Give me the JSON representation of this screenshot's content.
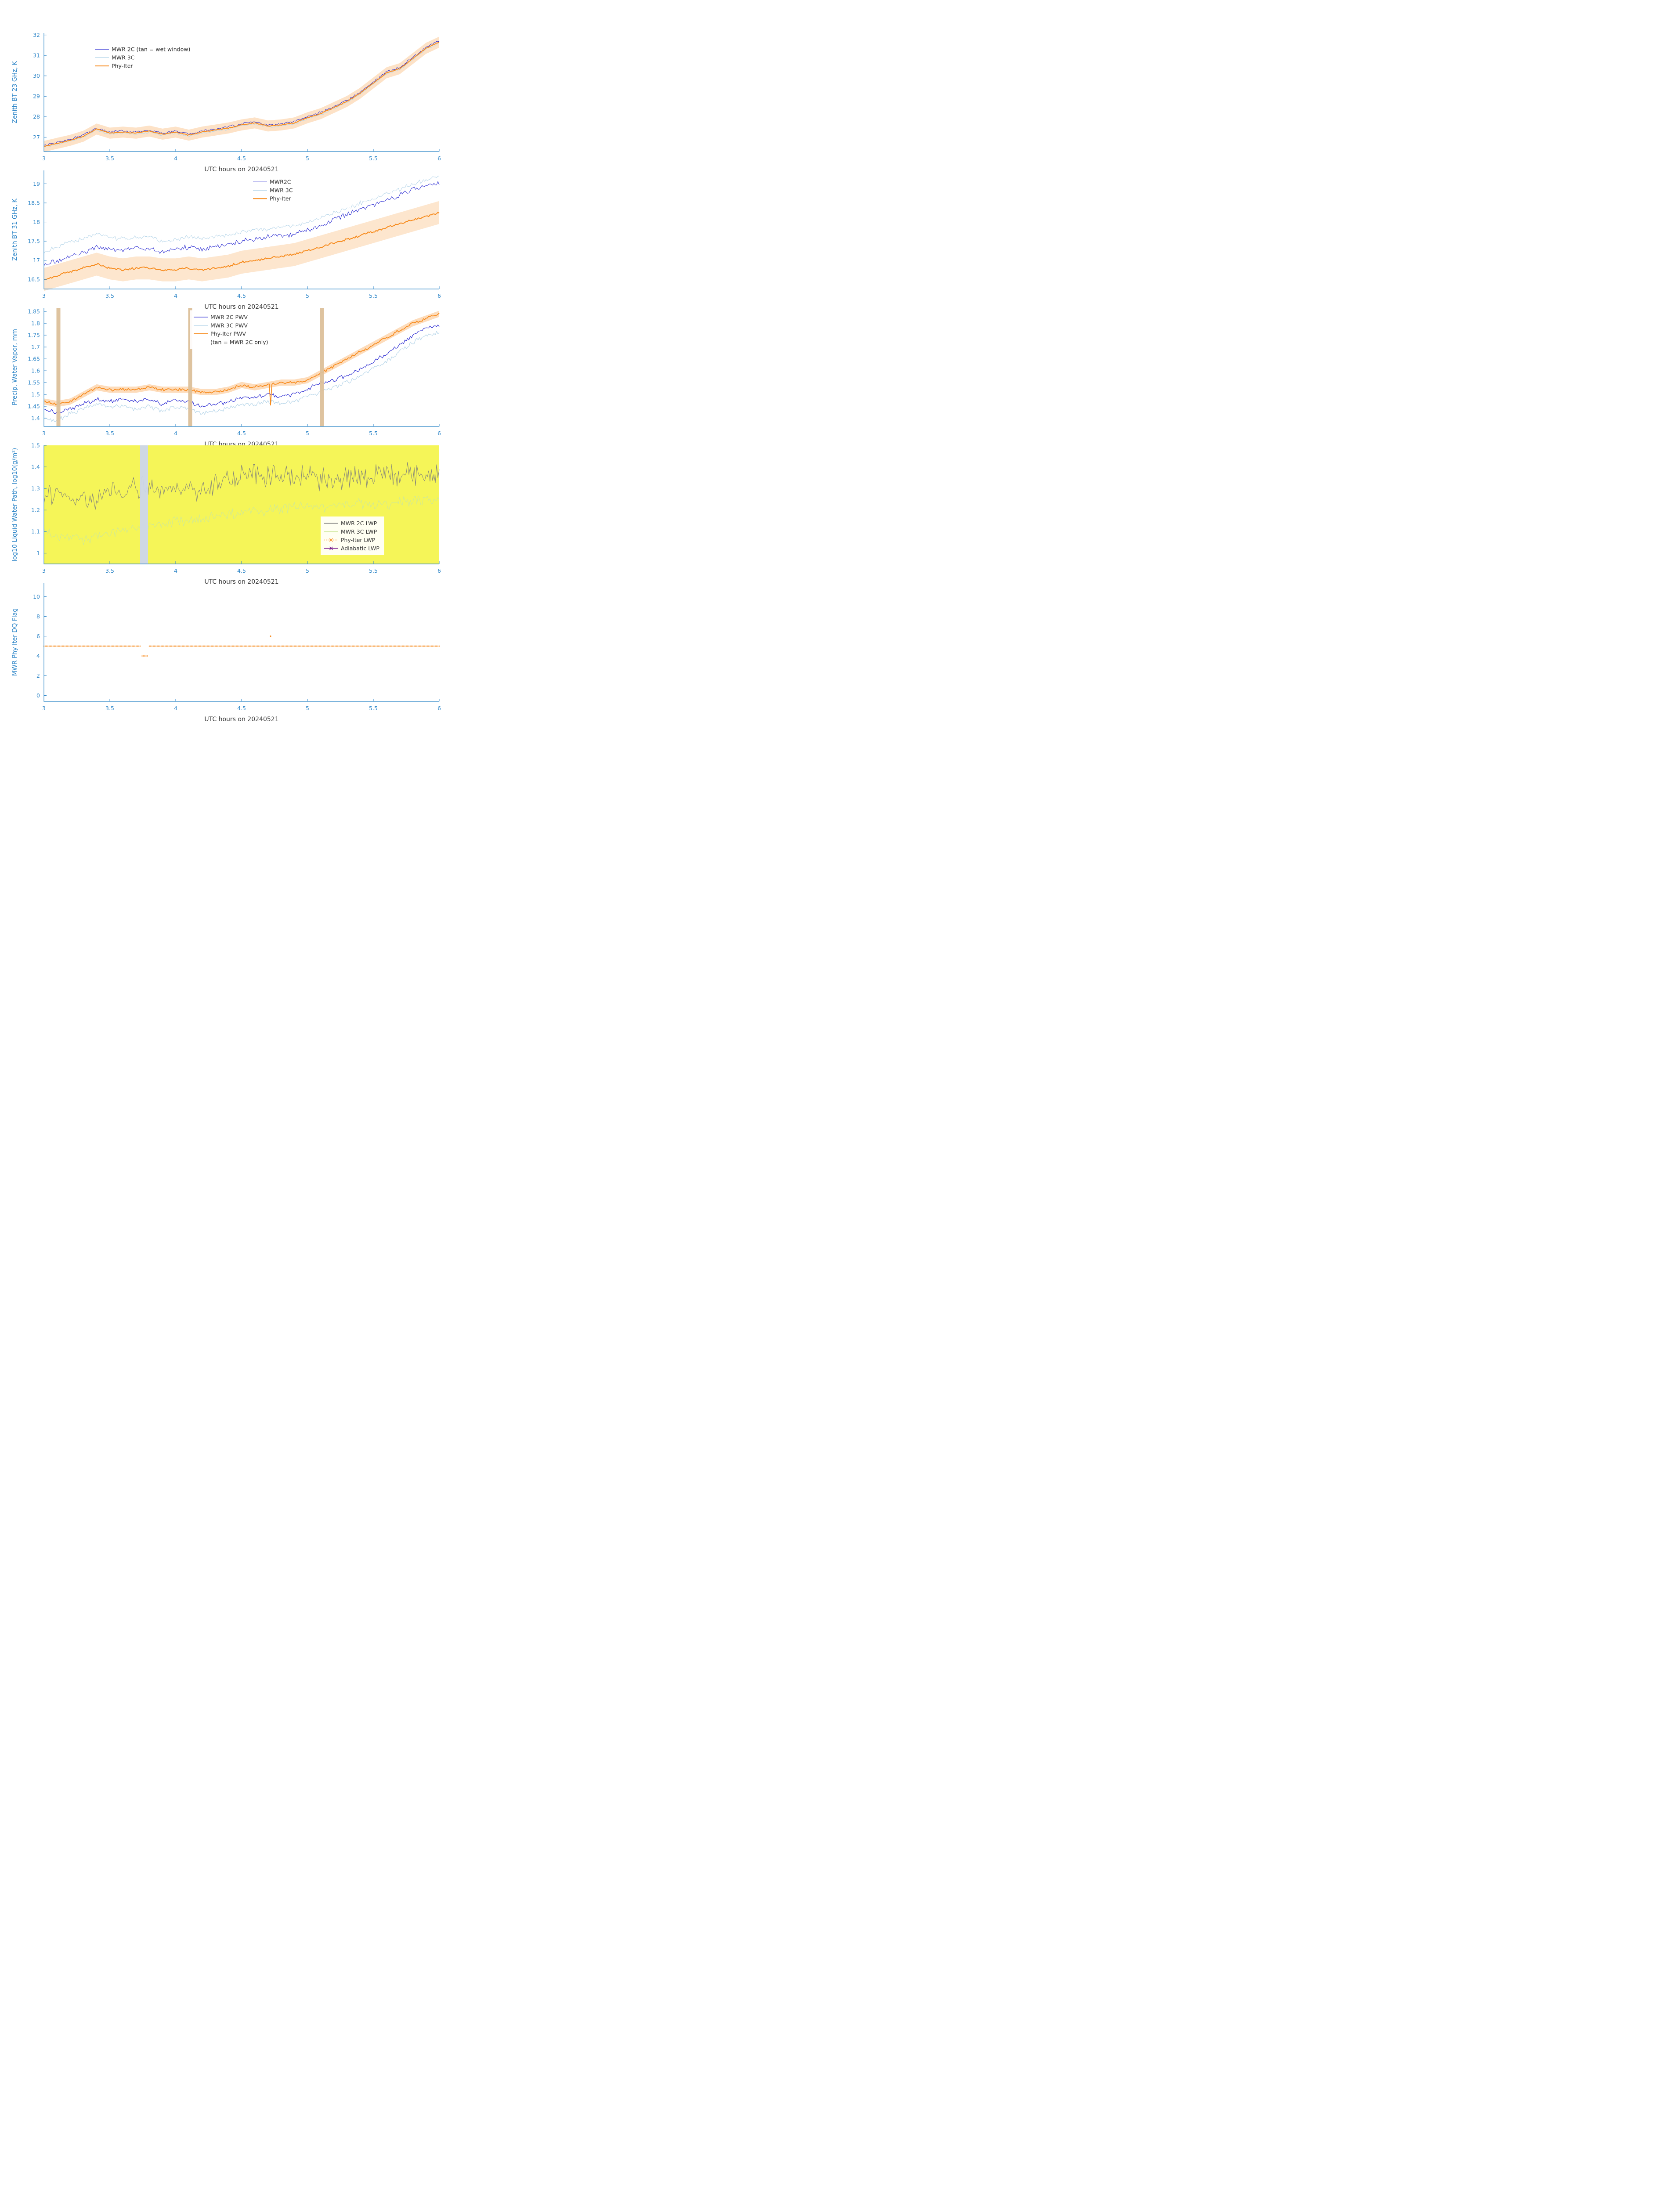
{
  "figure": {
    "axis_color": "#2e86c8",
    "text_color": "#3a3a3a",
    "legend_text_color": "#303030",
    "xlabel": "UTC hours on 20240521"
  },
  "chart_data": [
    {
      "type": "line",
      "name": "zenith-bt-23",
      "ylabel": "Zenith BT 23 GHz, K",
      "xlabel": "UTC hours on 20240521",
      "xlim": [
        3,
        6
      ],
      "xticks": [
        3,
        3.5,
        4,
        4.5,
        5,
        5.5,
        6
      ],
      "ylim": [
        26.3,
        32.1
      ],
      "yticks": [
        27,
        28,
        29,
        30,
        31,
        32
      ],
      "legend": {
        "x": 0.12,
        "y": 0.08
      },
      "x": [
        3,
        3.1,
        3.2,
        3.3,
        3.4,
        3.5,
        3.6,
        3.7,
        3.8,
        3.9,
        4,
        4.1,
        4.2,
        4.3,
        4.4,
        4.5,
        4.6,
        4.7,
        4.8,
        4.9,
        5,
        5.1,
        5.2,
        5.3,
        5.4,
        5.5,
        5.6,
        5.7,
        5.8,
        5.9,
        6
      ],
      "series": [
        {
          "label": "MWR 2C (tan = wet window)",
          "color": "#2f2fd3",
          "width": 1,
          "noise": 0.07,
          "values": [
            26.6,
            26.75,
            26.9,
            27.1,
            27.45,
            27.25,
            27.3,
            27.25,
            27.35,
            27.2,
            27.3,
            27.15,
            27.3,
            27.4,
            27.5,
            27.65,
            27.75,
            27.6,
            27.65,
            27.75,
            28.0,
            28.2,
            28.5,
            28.8,
            29.2,
            29.7,
            30.2,
            30.4,
            30.9,
            31.4,
            31.7
          ]
        },
        {
          "label": "MWR 3C",
          "color": "#b9d7ea",
          "width": 1,
          "noise": 0.06,
          "values": [
            26.5,
            26.65,
            26.8,
            27.0,
            27.35,
            27.15,
            27.2,
            27.15,
            27.25,
            27.1,
            27.2,
            27.05,
            27.2,
            27.3,
            27.4,
            27.55,
            27.65,
            27.5,
            27.55,
            27.65,
            27.9,
            28.1,
            28.4,
            28.7,
            29.1,
            29.6,
            30.1,
            30.3,
            30.8,
            31.3,
            31.6
          ]
        },
        {
          "label": "Phy-Iter",
          "color": "#f78c1f",
          "width": 2,
          "noise": 0.025,
          "band": 0.27,
          "band_color": "rgba(247,140,31,0.25)",
          "values": [
            26.55,
            26.7,
            26.85,
            27.05,
            27.4,
            27.2,
            27.25,
            27.2,
            27.3,
            27.15,
            27.25,
            27.1,
            27.25,
            27.35,
            27.45,
            27.6,
            27.7,
            27.55,
            27.6,
            27.7,
            27.95,
            28.15,
            28.45,
            28.75,
            29.15,
            29.65,
            30.15,
            30.35,
            30.85,
            31.35,
            31.65
          ]
        }
      ]
    },
    {
      "type": "line",
      "name": "zenith-bt-31",
      "ylabel": "Zenith BT 31 GHz, K",
      "xlabel": "UTC hours on 20240521",
      "xlim": [
        3,
        6
      ],
      "xticks": [
        3,
        3.5,
        4,
        4.5,
        5,
        5.5,
        6
      ],
      "ylim": [
        16.25,
        19.35
      ],
      "yticks": [
        16.5,
        17,
        17.5,
        18,
        18.5,
        19
      ],
      "legend": {
        "x": 0.52,
        "y": 0.04
      },
      "x": [
        3,
        3.1,
        3.2,
        3.3,
        3.4,
        3.5,
        3.6,
        3.7,
        3.8,
        3.9,
        4,
        4.1,
        4.2,
        4.3,
        4.4,
        4.5,
        4.6,
        4.7,
        4.8,
        4.9,
        5,
        5.1,
        5.2,
        5.3,
        5.4,
        5.5,
        5.6,
        5.7,
        5.8,
        5.9,
        6
      ],
      "series": [
        {
          "label": "MWR2C",
          "color": "#2f2fd3",
          "width": 1,
          "noise": 0.08,
          "values": [
            16.9,
            17.0,
            17.1,
            17.2,
            17.35,
            17.3,
            17.25,
            17.35,
            17.3,
            17.2,
            17.3,
            17.35,
            17.3,
            17.35,
            17.4,
            17.5,
            17.55,
            17.6,
            17.65,
            17.7,
            17.8,
            17.9,
            18.05,
            18.2,
            18.35,
            18.45,
            18.6,
            18.7,
            18.85,
            18.95,
            19.0
          ]
        },
        {
          "label": "MWR 3C",
          "color": "#b9d7ea",
          "width": 1,
          "noise": 0.07,
          "values": [
            17.2,
            17.35,
            17.5,
            17.55,
            17.7,
            17.6,
            17.55,
            17.6,
            17.6,
            17.5,
            17.55,
            17.6,
            17.55,
            17.6,
            17.65,
            17.75,
            17.8,
            17.8,
            17.85,
            17.9,
            18.0,
            18.1,
            18.25,
            18.35,
            18.5,
            18.6,
            18.75,
            18.85,
            19.0,
            19.1,
            19.2
          ]
        },
        {
          "label": "Phy-Iter",
          "color": "#f78c1f",
          "width": 2,
          "noise": 0.035,
          "band": 0.3,
          "band_color": "rgba(247,140,31,0.22)",
          "values": [
            16.5,
            16.6,
            16.7,
            16.8,
            16.9,
            16.8,
            16.75,
            16.8,
            16.8,
            16.75,
            16.75,
            16.8,
            16.75,
            16.8,
            16.85,
            16.95,
            17.0,
            17.05,
            17.1,
            17.15,
            17.25,
            17.35,
            17.45,
            17.55,
            17.65,
            17.75,
            17.85,
            17.95,
            18.05,
            18.15,
            18.25
          ]
        }
      ]
    },
    {
      "type": "line",
      "name": "precip-water-vapor",
      "ylabel": "Precip. Water Vapor, mm",
      "xlabel": "UTC hours on 20240521",
      "xlim": [
        3,
        6
      ],
      "xticks": [
        3,
        3.5,
        4,
        4.5,
        5,
        5.5,
        6
      ],
      "ylim": [
        1.365,
        1.865
      ],
      "yticks": [
        1.4,
        1.45,
        1.5,
        1.55,
        1.6,
        1.65,
        1.7,
        1.75,
        1.8,
        1.85
      ],
      "legend": {
        "x": 0.37,
        "y": 0.02
      },
      "vbands": [
        {
          "from": 3.095,
          "to": 3.125,
          "color": "#dcc09a"
        },
        {
          "from": 4.095,
          "to": 4.125,
          "color": "#dcc09a"
        },
        {
          "from": 5.095,
          "to": 5.125,
          "color": "#dcc09a"
        }
      ],
      "x": [
        3,
        3.1,
        3.2,
        3.3,
        3.4,
        3.5,
        3.6,
        3.7,
        3.8,
        3.9,
        4,
        4.1,
        4.2,
        4.3,
        4.4,
        4.5,
        4.6,
        4.7,
        4.8,
        4.9,
        5,
        5.1,
        5.2,
        5.3,
        5.4,
        5.5,
        5.6,
        5.7,
        5.8,
        5.9,
        6
      ],
      "series": [
        {
          "label": "MWR 2C PWV",
          "color": "#2f2fd3",
          "width": 1.2,
          "noise": 0.011,
          "values": [
            1.44,
            1.42,
            1.44,
            1.46,
            1.48,
            1.47,
            1.48,
            1.47,
            1.48,
            1.46,
            1.48,
            1.47,
            1.45,
            1.46,
            1.47,
            1.49,
            1.49,
            1.5,
            1.49,
            1.5,
            1.52,
            1.55,
            1.56,
            1.58,
            1.61,
            1.64,
            1.67,
            1.71,
            1.75,
            1.78,
            1.79
          ]
        },
        {
          "label": "MWR 3C PWV",
          "color": "#b9d7ea",
          "width": 1.2,
          "noise": 0.011,
          "values": [
            1.4,
            1.39,
            1.42,
            1.44,
            1.46,
            1.45,
            1.45,
            1.44,
            1.45,
            1.43,
            1.45,
            1.44,
            1.42,
            1.43,
            1.44,
            1.46,
            1.46,
            1.47,
            1.46,
            1.47,
            1.49,
            1.51,
            1.53,
            1.55,
            1.58,
            1.61,
            1.64,
            1.68,
            1.72,
            1.75,
            1.76
          ]
        },
        {
          "label": "Phy-Iter PWV",
          "label2": "(tan = MWR 2C only)",
          "color": "#f78c1f",
          "width": 1.8,
          "noise": 0.007,
          "band": 0.013,
          "band_color": "rgba(247,140,31,0.3)",
          "spikes": [
            {
              "x": 4.72,
              "y": 1.455
            }
          ],
          "values": [
            1.47,
            1.46,
            1.47,
            1.5,
            1.53,
            1.52,
            1.52,
            1.52,
            1.53,
            1.52,
            1.52,
            1.52,
            1.51,
            1.51,
            1.52,
            1.54,
            1.53,
            1.54,
            1.55,
            1.55,
            1.56,
            1.59,
            1.62,
            1.65,
            1.68,
            1.71,
            1.74,
            1.77,
            1.8,
            1.82,
            1.84
          ]
        }
      ]
    },
    {
      "type": "line",
      "name": "liquid-water-path",
      "ylabel": "log10 Liquid Water Path, log10(g/m²)",
      "xlabel": "UTC hours on 20240521",
      "xlim": [
        3,
        6
      ],
      "xticks": [
        3,
        3.5,
        4,
        4.5,
        5,
        5.5,
        6
      ],
      "ylim": [
        0.95,
        1.5
      ],
      "yticks": [
        1,
        1.1,
        1.2,
        1.3,
        1.4,
        1.5
      ],
      "bg": "#f5f558",
      "legend": {
        "x": 0.7,
        "y": 0.6
      },
      "vbands": [
        {
          "from": 3.73,
          "to": 3.79,
          "color": "#ccd6ec"
        }
      ],
      "x": [
        3,
        3.1,
        3.2,
        3.3,
        3.4,
        3.5,
        3.6,
        3.7,
        3.8,
        3.9,
        4,
        4.1,
        4.2,
        4.3,
        4.4,
        4.5,
        4.6,
        4.7,
        4.8,
        4.9,
        5,
        5.1,
        5.2,
        5.3,
        5.4,
        5.5,
        5.6,
        5.7,
        5.8,
        5.9,
        6
      ],
      "series": [
        {
          "label": "MWR 2C LWP",
          "color": "#7d7d7d",
          "width": 0.9,
          "noise": 0.065,
          "values": [
            1.28,
            1.27,
            1.26,
            1.25,
            1.26,
            1.28,
            1.28,
            1.3,
            1.3,
            1.3,
            1.3,
            1.3,
            1.3,
            1.32,
            1.35,
            1.36,
            1.37,
            1.36,
            1.37,
            1.36,
            1.36,
            1.35,
            1.35,
            1.36,
            1.36,
            1.36,
            1.36,
            1.36,
            1.36,
            1.36,
            1.35
          ]
        },
        {
          "label": "MWR 3C LWP",
          "color": "#cde79b",
          "width": 0.9,
          "noise": 0.032,
          "values": [
            1.1,
            1.08,
            1.07,
            1.06,
            1.08,
            1.09,
            1.1,
            1.12,
            1.13,
            1.14,
            1.15,
            1.15,
            1.16,
            1.17,
            1.18,
            1.19,
            1.2,
            1.2,
            1.21,
            1.21,
            1.22,
            1.22,
            1.22,
            1.23,
            1.23,
            1.23,
            1.23,
            1.24,
            1.24,
            1.25,
            1.25
          ]
        },
        {
          "label": "Phy-Iter LWP",
          "color": "#f78c1f",
          "width": 1.2,
          "marker": "x",
          "dash": "2,2",
          "values": []
        },
        {
          "label": "Adiabatic LWP",
          "color": "#7a1f8e",
          "width": 1.2,
          "marker": "x",
          "values": []
        }
      ]
    },
    {
      "type": "scatter",
      "name": "dq-flag",
      "ylabel": "MWR Phy Iter DQ Flag",
      "xlabel": "UTC hours on 20240521",
      "xlim": [
        3,
        6
      ],
      "xticks": [
        3,
        3.5,
        4,
        4.5,
        5,
        5.5,
        6
      ],
      "ylim": [
        -0.6,
        11.4
      ],
      "yticks": [
        0,
        2,
        4,
        6,
        8,
        10
      ],
      "dots": {
        "color": "#f78c1f",
        "radius": 1.3,
        "step": 0.01,
        "segments": [
          {
            "from": 3.0,
            "to": 3.735,
            "y": 5
          },
          {
            "from": 3.745,
            "to": 3.785,
            "y": 4
          },
          {
            "from": 3.8,
            "to": 6.0,
            "y": 5
          }
        ],
        "extra_points": [
          {
            "x": 4.72,
            "y": 6
          }
        ]
      }
    }
  ]
}
